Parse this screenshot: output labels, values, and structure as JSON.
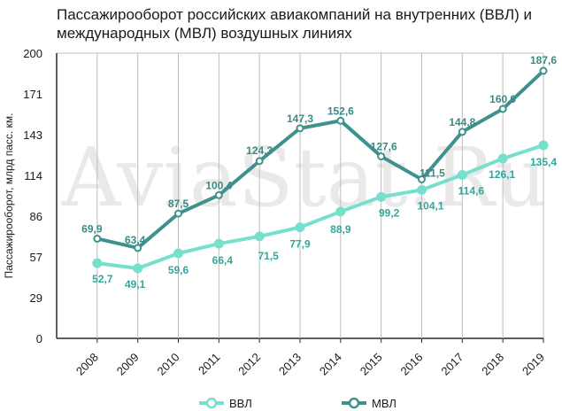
{
  "chart_data": {
    "type": "line",
    "title": "Пассажирооборот российских авиакомпаний на внутренних (ВВЛ) и международных (МВЛ) воздушных линиях",
    "xlabel": "",
    "ylabel": "Пассажирооборот, млрд пасс. км.",
    "categories": [
      "2008",
      "2009",
      "2010",
      "2011",
      "2012",
      "2013",
      "2014",
      "2015",
      "2016",
      "2017",
      "2018",
      "2019"
    ],
    "ylim": [
      0,
      200
    ],
    "yticks": [
      "0",
      "29",
      "57",
      "86",
      "114",
      "143",
      "171",
      "200"
    ],
    "grid": "vertical",
    "legend_position": "bottom",
    "watermark": "AviaStat.Ru",
    "series": [
      {
        "name": "ВВЛ",
        "color": "#76e0cd",
        "values": [
          52.7,
          49.1,
          59.6,
          66.4,
          71.5,
          77.9,
          88.9,
          99.2,
          104.1,
          114.6,
          126.1,
          135.4
        ],
        "labels": [
          "52,7",
          "49,1",
          "59,6",
          "66,4",
          "71,5",
          "77,9",
          "88,9",
          "99,2",
          "104,1",
          "114,6",
          "126,1",
          "135,4"
        ]
      },
      {
        "name": "МВЛ",
        "color": "#3f918c",
        "values": [
          69.9,
          63.4,
          87.5,
          100.4,
          124.3,
          147.3,
          152.6,
          127.6,
          111.5,
          144.8,
          160.9,
          187.6
        ],
        "labels": [
          "69,9",
          "63,4",
          "87,5",
          "100,4",
          "124,3",
          "147,3",
          "152,6",
          "127,6",
          "111,5",
          "144,8",
          "160,9",
          "187,6"
        ]
      }
    ]
  }
}
